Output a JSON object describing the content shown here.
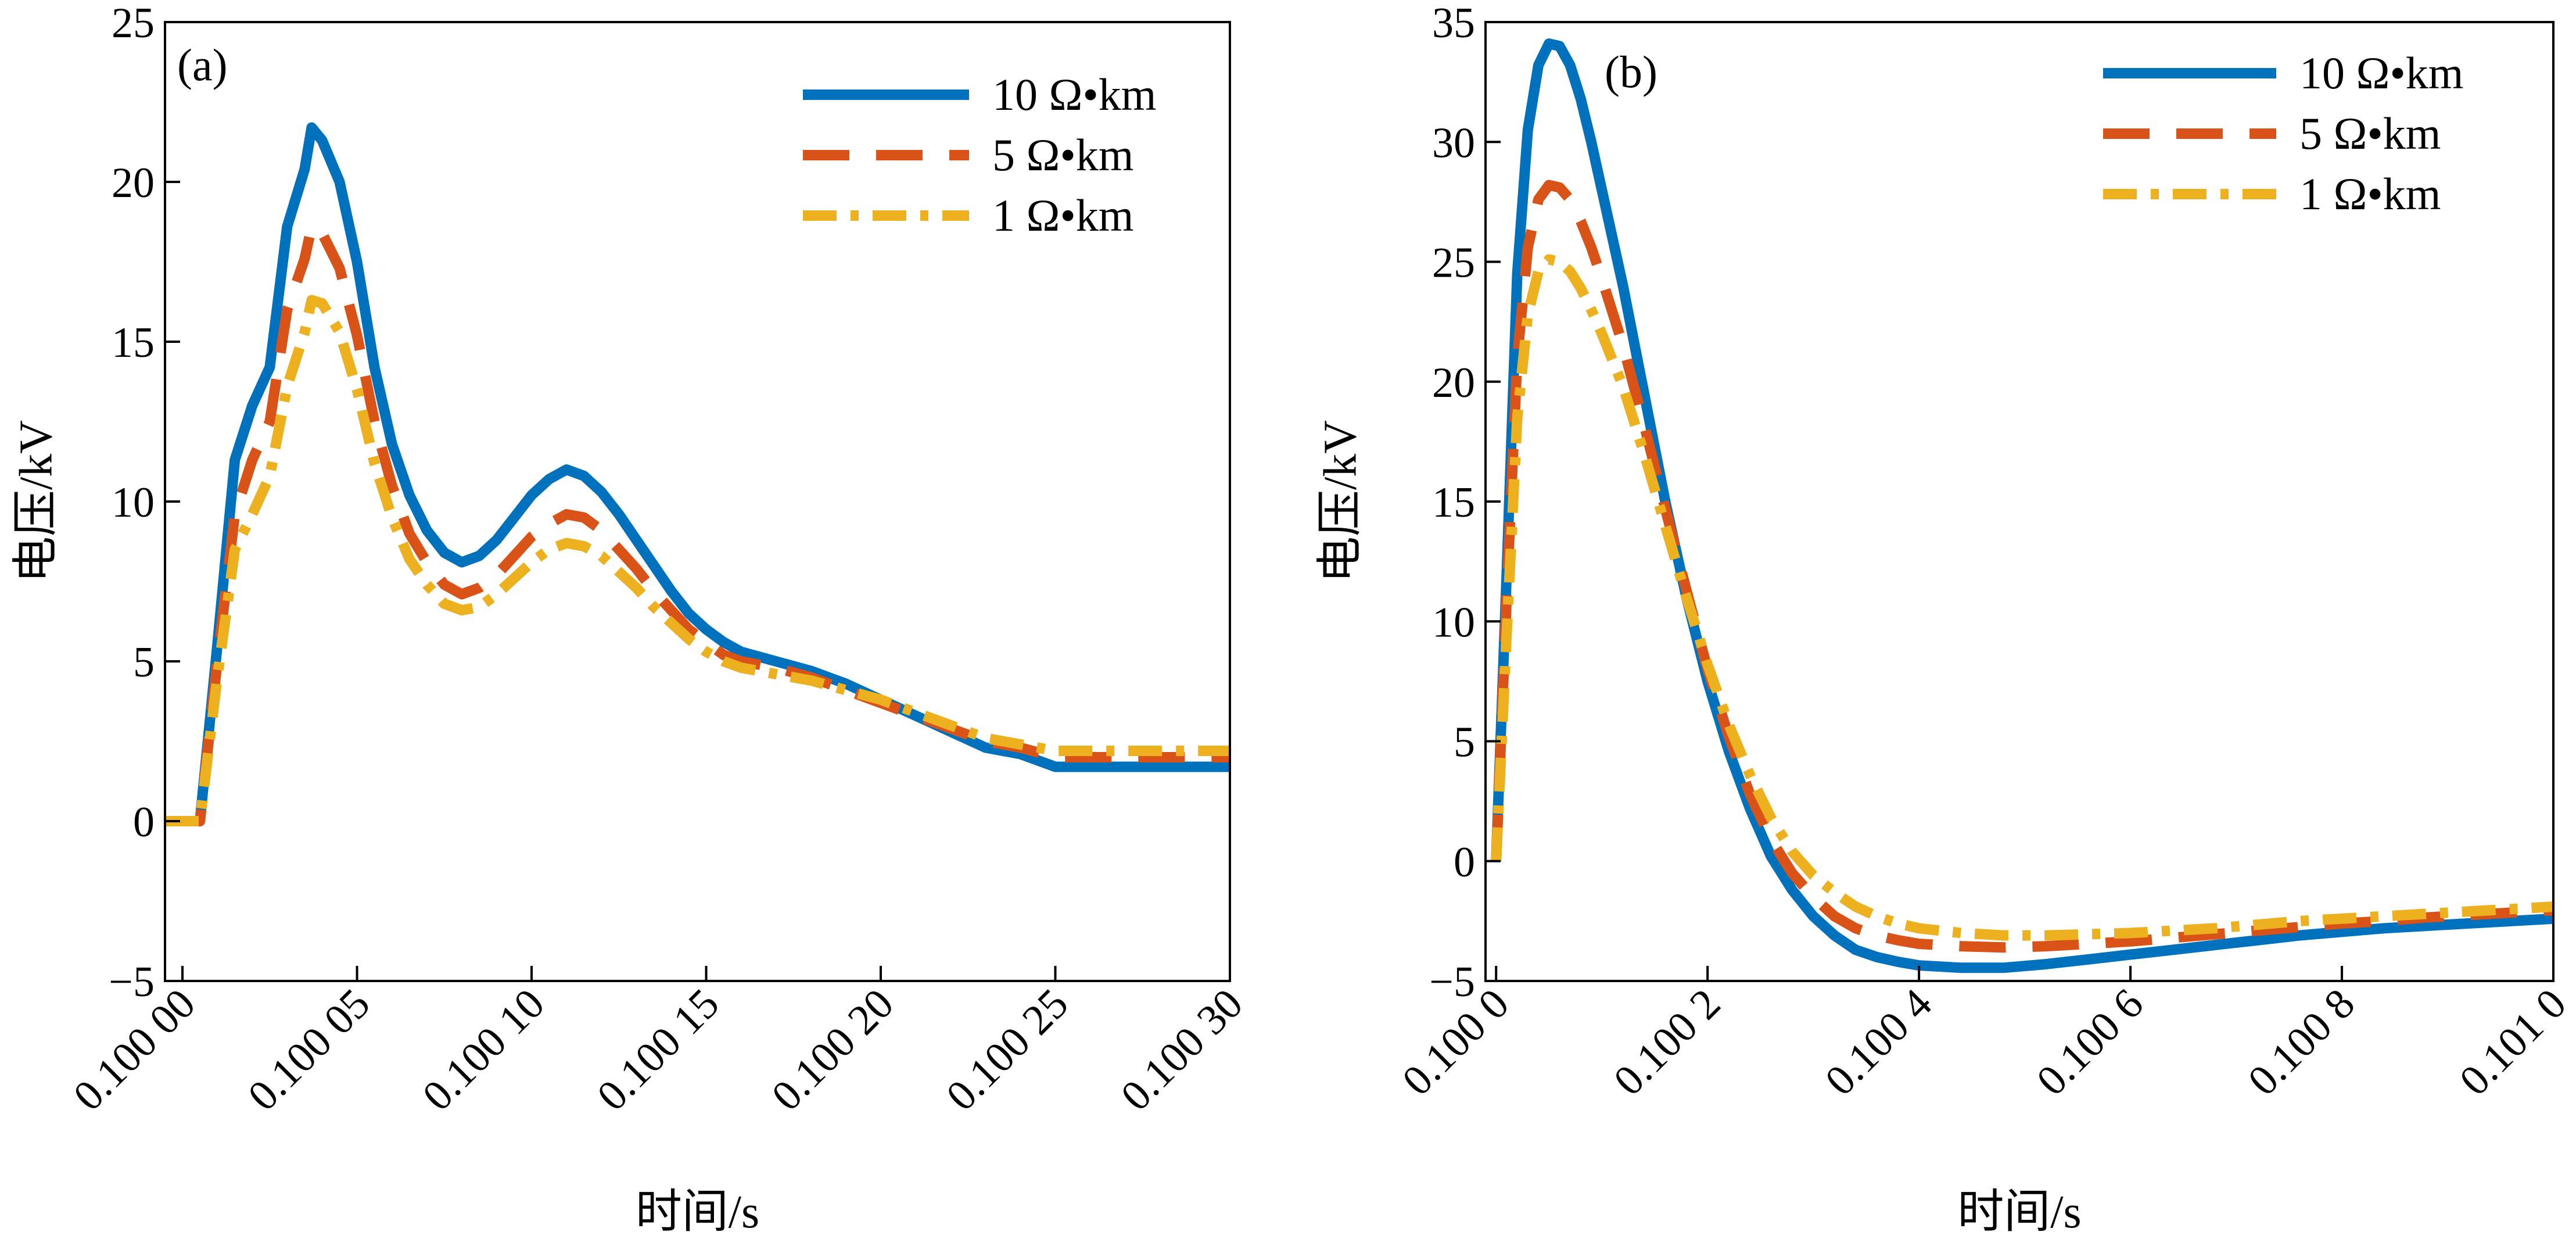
{
  "chart_data": [
    {
      "panel": "(a)",
      "type": "line",
      "xlabel": "时间/s",
      "ylabel": "电压/kV",
      "xlim": [
        0.099995,
        0.1003
      ],
      "ylim": [
        -5,
        25
      ],
      "xticks": [
        0.1,
        0.10005,
        0.1001,
        0.10015,
        0.1002,
        0.10025,
        0.1003
      ],
      "xtick_labels": [
        "0.100 00",
        "0.100 05",
        "0.100 10",
        "0.100 15",
        "0.100 20",
        "0.100 25",
        "0.100 30"
      ],
      "yticks": [
        -5,
        0,
        5,
        10,
        15,
        20,
        25
      ],
      "ytick_labels": [
        "−5",
        "0",
        "5",
        "10",
        "15",
        "20",
        "25"
      ],
      "legend_position": "top-right",
      "series": [
        {
          "name": "10 Ω•km",
          "color": "#0072BD",
          "style": "solid",
          "x": [
            0.099995,
            0.1,
            0.100002,
            0.100005,
            0.10001,
            0.100015,
            0.10002,
            0.100025,
            0.10003,
            0.100035,
            0.100037,
            0.10004,
            0.100045,
            0.10005,
            0.100055,
            0.10006,
            0.100065,
            0.10007,
            0.100075,
            0.10008,
            0.100085,
            0.10009,
            0.100095,
            0.1001,
            0.100105,
            0.10011,
            0.100115,
            0.10012,
            0.100125,
            0.10013,
            0.100135,
            0.10014,
            0.100145,
            0.10015,
            0.100155,
            0.10016,
            0.10017,
            0.10018,
            0.10019,
            0.1002,
            0.10021,
            0.10022,
            0.10023,
            0.10024,
            0.10025,
            0.10026,
            0.10027,
            0.10028,
            0.10029,
            0.100295,
            0.1003
          ],
          "y": [
            0,
            0,
            0,
            0,
            5.5,
            11.3,
            13.0,
            14.2,
            18.6,
            20.4,
            21.7,
            21.3,
            20.0,
            17.5,
            14.2,
            11.8,
            10.2,
            9.1,
            8.4,
            8.1,
            8.3,
            8.8,
            9.5,
            10.2,
            10.7,
            11.0,
            10.8,
            10.3,
            9.6,
            8.8,
            8.0,
            7.2,
            6.5,
            6.0,
            5.6,
            5.3,
            5.0,
            4.7,
            4.3,
            3.8,
            3.3,
            2.8,
            2.3,
            2.1,
            1.7,
            1.7,
            1.7,
            1.7,
            1.7,
            1.7,
            1.7
          ]
        },
        {
          "name": "5 Ω•km",
          "color": "#D95319",
          "style": "dashed",
          "x": [
            0.099995,
            0.1,
            0.100002,
            0.100005,
            0.10001,
            0.100015,
            0.10002,
            0.100025,
            0.10003,
            0.100035,
            0.100037,
            0.10004,
            0.100045,
            0.10005,
            0.100055,
            0.10006,
            0.100065,
            0.10007,
            0.100075,
            0.10008,
            0.100085,
            0.10009,
            0.100095,
            0.1001,
            0.100105,
            0.10011,
            0.100115,
            0.10012,
            0.100125,
            0.10013,
            0.100135,
            0.10014,
            0.100145,
            0.10015,
            0.100155,
            0.10016,
            0.10017,
            0.10018,
            0.10019,
            0.1002,
            0.10021,
            0.10022,
            0.10023,
            0.10024,
            0.10025,
            0.10026,
            0.10027,
            0.10028,
            0.10029,
            0.100295,
            0.1003
          ],
          "y": [
            0,
            0,
            0,
            0,
            5.0,
            9.6,
            11.3,
            12.5,
            16.0,
            17.6,
            18.6,
            18.4,
            17.3,
            15.2,
            12.5,
            10.5,
            9.0,
            8.1,
            7.4,
            7.1,
            7.3,
            7.7,
            8.3,
            8.9,
            9.3,
            9.6,
            9.5,
            9.1,
            8.5,
            7.9,
            7.2,
            6.6,
            6.0,
            5.6,
            5.2,
            5.0,
            4.8,
            4.5,
            4.1,
            3.7,
            3.3,
            2.9,
            2.5,
            2.3,
            2.0,
            2.0,
            2.0,
            2.0,
            2.0,
            2.0,
            2.0
          ]
        },
        {
          "name": "1 Ω•km",
          "color": "#EDB120",
          "style": "dashdot",
          "x": [
            0.099995,
            0.1,
            0.100002,
            0.100005,
            0.10001,
            0.100015,
            0.10002,
            0.100025,
            0.10003,
            0.100035,
            0.100037,
            0.10004,
            0.100045,
            0.10005,
            0.100055,
            0.10006,
            0.100065,
            0.10007,
            0.100075,
            0.10008,
            0.100085,
            0.10009,
            0.100095,
            0.1001,
            0.100105,
            0.10011,
            0.100115,
            0.10012,
            0.100125,
            0.10013,
            0.100135,
            0.10014,
            0.100145,
            0.10015,
            0.100155,
            0.10016,
            0.10017,
            0.10018,
            0.10019,
            0.1002,
            0.10021,
            0.10022,
            0.10023,
            0.10024,
            0.10025,
            0.10026,
            0.10027,
            0.10028,
            0.10029,
            0.100295,
            0.1003
          ],
          "y": [
            0,
            0,
            0,
            0,
            4.5,
            8.5,
            9.6,
            10.8,
            13.6,
            15.3,
            16.3,
            16.2,
            15.3,
            13.5,
            11.2,
            9.5,
            8.2,
            7.4,
            6.8,
            6.6,
            6.7,
            7.1,
            7.6,
            8.1,
            8.5,
            8.7,
            8.6,
            8.3,
            7.8,
            7.3,
            6.7,
            6.2,
            5.7,
            5.3,
            5.0,
            4.8,
            4.6,
            4.4,
            4.1,
            3.8,
            3.4,
            3.0,
            2.6,
            2.4,
            2.2,
            2.2,
            2.2,
            2.2,
            2.2,
            2.2,
            2.2
          ]
        }
      ]
    },
    {
      "panel": "(b)",
      "type": "line",
      "xlabel": "时间/s",
      "ylabel": "电压/kV",
      "xlim": [
        0.09999,
        0.101
      ],
      "ylim": [
        -5,
        35
      ],
      "xticks": [
        0.1,
        0.1002,
        0.1004,
        0.1006,
        0.1008,
        0.101
      ],
      "xtick_labels": [
        "0.100 0",
        "0.100 2",
        "0.100 4",
        "0.100 6",
        "0.100 8",
        "0.101 0"
      ],
      "yticks": [
        -5,
        0,
        5,
        10,
        15,
        20,
        25,
        30,
        35
      ],
      "ytick_labels": [
        "−5",
        "0",
        "5",
        "10",
        "15",
        "20",
        "25",
        "30",
        "35"
      ],
      "legend_position": "top-right",
      "series": [
        {
          "name": "10 Ω•km",
          "color": "#0072BD",
          "style": "solid",
          "x": [
            0.1,
            0.10001,
            0.10002,
            0.10003,
            0.10004,
            0.10005,
            0.10006,
            0.10007,
            0.10008,
            0.10009,
            0.1001,
            0.10012,
            0.10014,
            0.10016,
            0.10018,
            0.1002,
            0.10022,
            0.10024,
            0.10026,
            0.10028,
            0.1003,
            0.10032,
            0.10034,
            0.10036,
            0.10038,
            0.1004,
            0.10044,
            0.10048,
            0.10052,
            0.10056,
            0.1006,
            0.10064,
            0.10068,
            0.10072,
            0.10076,
            0.1008,
            0.10084,
            0.10088,
            0.10092,
            0.10096,
            0.101
          ],
          "y": [
            0,
            12,
            24.5,
            30.5,
            33.2,
            34.1,
            34.0,
            33.2,
            31.8,
            30.0,
            28.0,
            24.0,
            19.5,
            15.0,
            11.0,
            7.5,
            4.6,
            2.2,
            0.2,
            -1.2,
            -2.3,
            -3.1,
            -3.7,
            -4.0,
            -4.2,
            -4.35,
            -4.45,
            -4.45,
            -4.3,
            -4.1,
            -3.9,
            -3.7,
            -3.5,
            -3.3,
            -3.1,
            -2.95,
            -2.8,
            -2.7,
            -2.6,
            -2.5,
            -2.4
          ]
        },
        {
          "name": "5 Ω•km",
          "color": "#D95319",
          "style": "dashed",
          "x": [
            0.1,
            0.10001,
            0.10002,
            0.10003,
            0.10004,
            0.10005,
            0.10006,
            0.10007,
            0.10008,
            0.10009,
            0.1001,
            0.10012,
            0.10014,
            0.10016,
            0.10018,
            0.1002,
            0.10022,
            0.10024,
            0.10026,
            0.10028,
            0.1003,
            0.10032,
            0.10034,
            0.10036,
            0.10038,
            0.1004,
            0.10044,
            0.10048,
            0.10052,
            0.10056,
            0.1006,
            0.10064,
            0.10068,
            0.10072,
            0.10076,
            0.1008,
            0.10084,
            0.10088,
            0.10092,
            0.10096,
            0.101
          ],
          "y": [
            0,
            11,
            21,
            25.6,
            27.6,
            28.2,
            28.1,
            27.6,
            26.7,
            25.6,
            24.3,
            21.5,
            18.2,
            14.7,
            11.3,
            8.0,
            5.2,
            2.8,
            0.9,
            -0.5,
            -1.5,
            -2.3,
            -2.8,
            -3.1,
            -3.3,
            -3.45,
            -3.55,
            -3.6,
            -3.55,
            -3.45,
            -3.35,
            -3.2,
            -3.05,
            -2.9,
            -2.75,
            -2.6,
            -2.5,
            -2.35,
            -2.25,
            -2.15,
            -2.05
          ]
        },
        {
          "name": "1 Ω•km",
          "color": "#EDB120",
          "style": "dashdot",
          "x": [
            0.1,
            0.10001,
            0.10002,
            0.10003,
            0.10004,
            0.10005,
            0.10006,
            0.10007,
            0.10008,
            0.10009,
            0.1001,
            0.10012,
            0.10014,
            0.10016,
            0.10018,
            0.1002,
            0.10022,
            0.10024,
            0.10026,
            0.10028,
            0.1003,
            0.10032,
            0.10034,
            0.10036,
            0.10038,
            0.1004,
            0.10044,
            0.10048,
            0.10052,
            0.10056,
            0.1006,
            0.10064,
            0.10068,
            0.10072,
            0.10076,
            0.1008,
            0.10084,
            0.10088,
            0.10092,
            0.10096,
            0.101
          ],
          "y": [
            0,
            9.5,
            18.5,
            22.8,
            24.6,
            25.1,
            25.0,
            24.6,
            23.9,
            23.0,
            22.0,
            19.8,
            17.0,
            14.0,
            11.0,
            8.2,
            5.7,
            3.6,
            1.8,
            0.4,
            -0.6,
            -1.3,
            -1.9,
            -2.3,
            -2.6,
            -2.8,
            -3.0,
            -3.1,
            -3.1,
            -3.05,
            -3.0,
            -2.9,
            -2.8,
            -2.65,
            -2.5,
            -2.4,
            -2.3,
            -2.2,
            -2.1,
            -2.0,
            -1.9
          ]
        }
      ]
    }
  ]
}
